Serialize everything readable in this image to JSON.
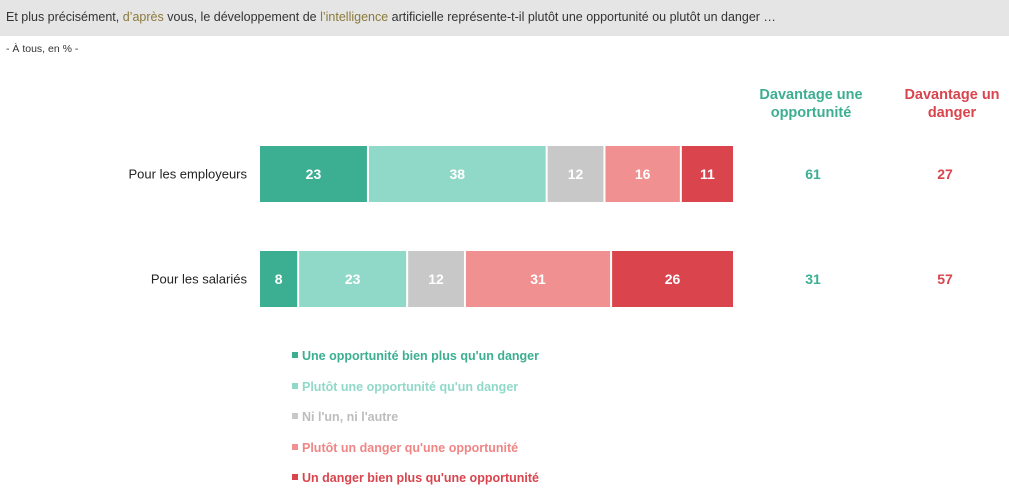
{
  "header": {
    "question_parts": [
      {
        "text": "Et plus précisément, ",
        "hl": false
      },
      {
        "text": "d’après",
        "hl": true
      },
      {
        "text": " vous, le développement de ",
        "hl": false
      },
      {
        "text": "l’intelligence",
        "hl": true
      },
      {
        "text": " artificielle représente-t-il plutôt une opportunité ou plutôt un danger …",
        "hl": false
      }
    ],
    "subtitle": "- À tous, en % -"
  },
  "summary_headers": {
    "opportunity": "Davantage une opportunité",
    "danger": "Davantage un danger"
  },
  "colors": {
    "opportunity_strong": "#3cae92",
    "opportunity_mild": "#90d9c8",
    "neutral": "#c8c8c8",
    "danger_mild": "#f09090",
    "danger_strong": "#d9444d",
    "opportunity_text": "#3cae92",
    "danger_text": "#d9444d"
  },
  "chart_data": {
    "type": "bar",
    "orientation": "horizontal",
    "stacked": true,
    "categories": [
      "Pour les employeurs",
      "Pour les salariés"
    ],
    "series": [
      {
        "name": "Une opportunité bien plus qu'un danger",
        "values": [
          23,
          8
        ],
        "color": "#3cae92",
        "label_color": "#3cae92"
      },
      {
        "name": "Plutôt une opportunité qu'un danger",
        "values": [
          38,
          23
        ],
        "color": "#90d9c8",
        "label_color": "#90d9c8"
      },
      {
        "name": "Ni l'un, ni l'autre",
        "values": [
          12,
          12
        ],
        "color": "#c8c8c8",
        "label_color": "#bdbdbd"
      },
      {
        "name": "Plutôt un danger qu'une opportunité",
        "values": [
          16,
          31
        ],
        "color": "#f09090",
        "label_color": "#f08585"
      },
      {
        "name": "Un danger bien plus qu'une opportunité",
        "values": [
          11,
          26
        ],
        "color": "#d9444d",
        "label_color": "#d9444d"
      }
    ],
    "summary": {
      "opportunity": [
        61,
        31
      ],
      "danger": [
        27,
        57
      ]
    }
  }
}
